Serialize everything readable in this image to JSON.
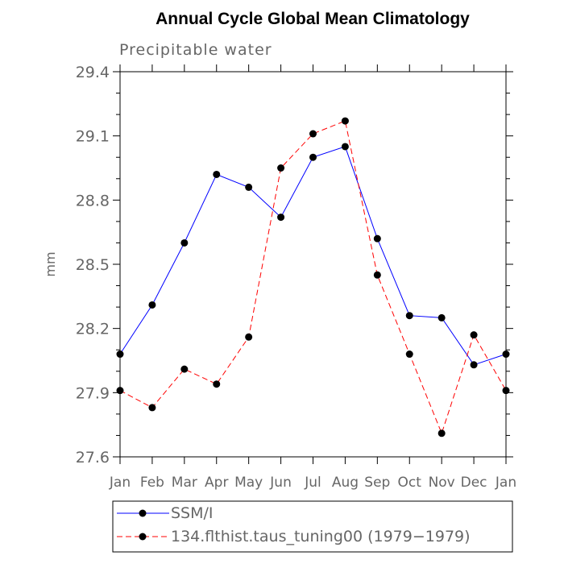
{
  "chart_data": {
    "type": "line",
    "title": "Annual Cycle Global Mean Climatology",
    "subtitle": "Precipitable water",
    "ylabel": "mm",
    "xlabel": "",
    "categories": [
      "Jan",
      "Feb",
      "Mar",
      "Apr",
      "May",
      "Jun",
      "Jul",
      "Aug",
      "Sep",
      "Oct",
      "Nov",
      "Dec",
      "Jan"
    ],
    "ylim": [
      27.6,
      29.4
    ],
    "yticks": [
      27.6,
      27.9,
      28.2,
      28.5,
      28.8,
      29.1,
      29.4
    ],
    "ytick_labels": [
      "27.6",
      "27.9",
      "28.2",
      "28.5",
      "28.8",
      "29.1",
      "29.4"
    ],
    "grid": false,
    "legend_position": "bottom",
    "series": [
      {
        "name": "SSM/I",
        "color": "#0000ff",
        "line_style": "solid",
        "marker": "filled-circle",
        "values": [
          28.08,
          28.31,
          28.6,
          28.92,
          28.86,
          28.72,
          29.0,
          29.05,
          28.62,
          28.26,
          28.25,
          28.03,
          28.08
        ]
      },
      {
        "name": "134.flthist.taus_tuning00 (1979−1979)",
        "color": "#ff0000",
        "line_style": "dashed",
        "marker": "filled-circle",
        "values": [
          27.91,
          27.83,
          28.01,
          27.94,
          28.16,
          28.95,
          29.11,
          29.17,
          28.45,
          28.08,
          27.71,
          28.17,
          27.91
        ]
      }
    ]
  }
}
